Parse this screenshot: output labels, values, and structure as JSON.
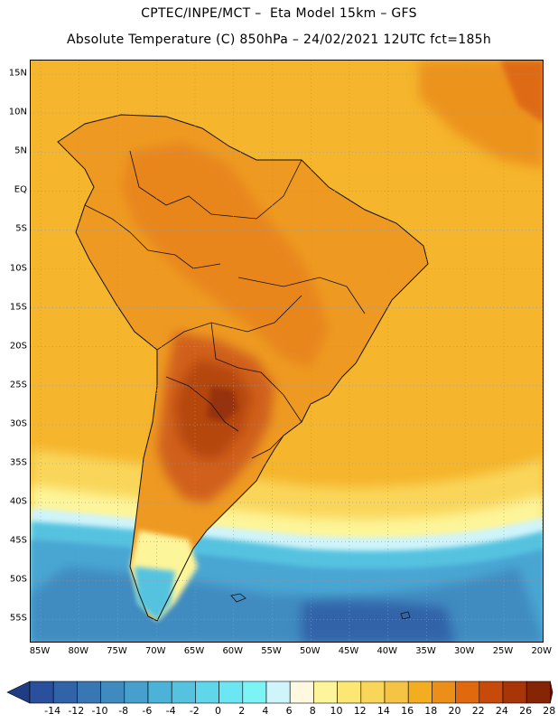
{
  "header": {
    "title_line1": "CPTEC/INPE/MCT –  Eta Model 15km – GFS",
    "title_line2": "Absolute Temperature (C) 850hPa – 24/02/2021 12UTC fct=185h"
  },
  "map": {
    "lat_labels": [
      "15N",
      "10N",
      "5N",
      "EQ",
      "5S",
      "10S",
      "15S",
      "20S",
      "25S",
      "30S",
      "35S",
      "40S",
      "45S",
      "50S",
      "55S"
    ],
    "lon_labels": [
      "85W",
      "80W",
      "75W",
      "70W",
      "65W",
      "60W",
      "55W",
      "50W",
      "45W",
      "40W",
      "35W",
      "30W",
      "25W",
      "20W"
    ]
  },
  "colorbar": {
    "ticks": [
      "-14",
      "-12",
      "-10",
      "-8",
      "-6",
      "-4",
      "-2",
      "0",
      "2",
      "4",
      "6",
      "8",
      "10",
      "12",
      "14",
      "16",
      "18",
      "20",
      "22",
      "24",
      "26",
      "28"
    ],
    "colors": [
      "#2a4f9c",
      "#3163a8",
      "#3877b4",
      "#3f8bc0",
      "#469fcc",
      "#4cb2d8",
      "#55c3e0",
      "#5fd6ea",
      "#6ce6f2",
      "#7cf4f6",
      "#cff4fa",
      "#fff8e0",
      "#fdf59a",
      "#fce674",
      "#f9d65a",
      "#f5c444",
      "#f2ad20",
      "#eb8f18",
      "#e0690e",
      "#c84a0a",
      "#a83508",
      "#862406"
    ],
    "end_low_color": "#1f3d85",
    "end_high_color": "#6a0f0a"
  },
  "colors": {
    "ocean_base": "#f5b52c",
    "continent_hot": "#e57f1f",
    "core_hot": "#c9540d",
    "core_hottest": "#a63b08",
    "cold_band": "#48a6d3",
    "coldest": "#3274b4"
  }
}
